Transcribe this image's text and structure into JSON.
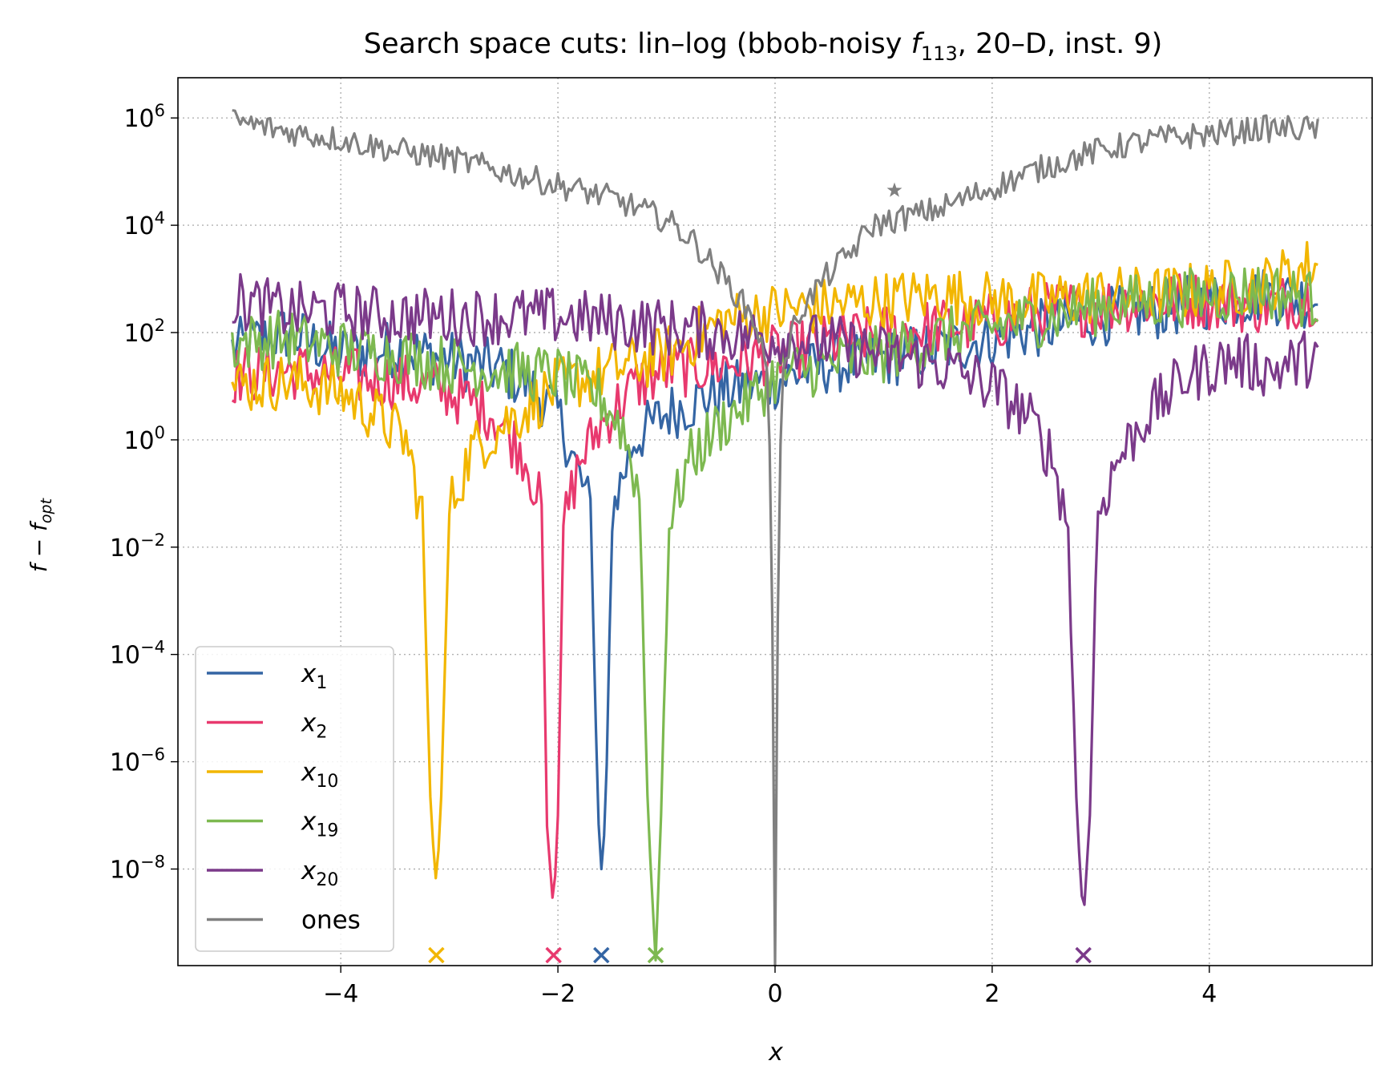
{
  "chart_data": {
    "type": "line",
    "title_main": "Search space cuts: lin–log (bbob-noisy ",
    "title_f": "f",
    "title_sub": "113",
    "title_tail": ", 20–D, inst. 9)",
    "xlabel": "x",
    "ylabel": "f − f",
    "ylabel_sub": "opt",
    "x_scale": "linear",
    "y_scale": "log",
    "xlim": [
      -5.5,
      5.5
    ],
    "ylim_log10": [
      -9.8,
      6.75
    ],
    "grid": true,
    "legend_position": "lower-left",
    "x_ticks": [
      {
        "value": -4,
        "label": "−4"
      },
      {
        "value": -2,
        "label": "−2"
      },
      {
        "value": 0,
        "label": "0"
      },
      {
        "value": 2,
        "label": "2"
      },
      {
        "value": 4,
        "label": "4"
      }
    ],
    "y_ticks": [
      {
        "exp": 6,
        "base": "10",
        "sup": "6"
      },
      {
        "exp": 4,
        "base": "10",
        "sup": "4"
      },
      {
        "exp": 2,
        "base": "10",
        "sup": "2"
      },
      {
        "exp": 0,
        "base": "10",
        "sup": "0"
      },
      {
        "exp": -2,
        "base": "10",
        "sup": "−2"
      },
      {
        "exp": -4,
        "base": "10",
        "sup": "−4"
      },
      {
        "exp": -6,
        "base": "10",
        "sup": "−6"
      },
      {
        "exp": -8,
        "base": "10",
        "sup": "−8"
      }
    ],
    "series": [
      {
        "name": "x",
        "sub": "1",
        "color": "#3465a4",
        "x_opt": -1.6,
        "profile": [
          [
            -5.0,
            1.7
          ],
          [
            -4.5,
            2.0
          ],
          [
            -4.0,
            1.6
          ],
          [
            -3.5,
            1.7
          ],
          [
            -3.0,
            1.5
          ],
          [
            -2.5,
            1.3
          ],
          [
            -2.2,
            0.9
          ],
          [
            -2.0,
            0.5
          ],
          [
            -1.85,
            -0.4
          ],
          [
            -1.7,
            -1.3
          ],
          [
            -1.63,
            -7.0
          ],
          [
            -1.6,
            -8.0
          ],
          [
            -1.56,
            -7.0
          ],
          [
            -1.5,
            -1.3
          ],
          [
            -1.3,
            0.0
          ],
          [
            -1.0,
            0.5
          ],
          [
            -0.5,
            0.9
          ],
          [
            0.0,
            1.1
          ],
          [
            0.5,
            1.4
          ],
          [
            1.0,
            1.5
          ],
          [
            1.5,
            1.7
          ],
          [
            2.0,
            1.9
          ],
          [
            2.5,
            2.1
          ],
          [
            3.0,
            2.3
          ],
          [
            3.5,
            2.4
          ],
          [
            4.0,
            2.6
          ],
          [
            4.5,
            2.7
          ],
          [
            5.0,
            2.6
          ]
        ]
      },
      {
        "name": "x",
        "sub": "2",
        "color": "#e8396e",
        "x_opt": -2.04,
        "profile": [
          [
            -5.0,
            1.2
          ],
          [
            -4.5,
            1.3
          ],
          [
            -4.0,
            1.2
          ],
          [
            -3.5,
            1.1
          ],
          [
            -3.0,
            0.9
          ],
          [
            -2.6,
            0.5
          ],
          [
            -2.3,
            -0.3
          ],
          [
            -2.15,
            -1.3
          ],
          [
            -2.1,
            -7.2
          ],
          [
            -2.04,
            -8.8
          ],
          [
            -2.0,
            -7.0
          ],
          [
            -1.95,
            -1.6
          ],
          [
            -1.8,
            -0.4
          ],
          [
            -1.6,
            0.3
          ],
          [
            -1.3,
            1.0
          ],
          [
            -1.0,
            1.3
          ],
          [
            -0.5,
            1.4
          ],
          [
            0.0,
            1.6
          ],
          [
            0.5,
            1.8
          ],
          [
            1.0,
            2.0
          ],
          [
            1.5,
            2.1
          ],
          [
            2.0,
            2.2
          ],
          [
            2.5,
            2.4
          ],
          [
            3.0,
            2.5
          ],
          [
            3.5,
            2.6
          ],
          [
            4.0,
            2.6
          ],
          [
            4.5,
            2.5
          ],
          [
            5.0,
            2.7
          ]
        ]
      },
      {
        "name": "x",
        "sub": "10",
        "color": "#f2b600",
        "x_opt": -3.12,
        "profile": [
          [
            -5.0,
            1.0
          ],
          [
            -4.5,
            1.1
          ],
          [
            -4.0,
            0.9
          ],
          [
            -3.7,
            0.5
          ],
          [
            -3.4,
            0.0
          ],
          [
            -3.25,
            -1.4
          ],
          [
            -3.17,
            -7.0
          ],
          [
            -3.12,
            -8.3
          ],
          [
            -3.08,
            -7.0
          ],
          [
            -3.0,
            -1.3
          ],
          [
            -2.8,
            -0.2
          ],
          [
            -2.5,
            0.3
          ],
          [
            -2.0,
            1.0
          ],
          [
            -1.5,
            1.3
          ],
          [
            -1.0,
            1.6
          ],
          [
            -0.5,
            2.2
          ],
          [
            0.0,
            2.4
          ],
          [
            0.5,
            2.5
          ],
          [
            1.0,
            2.6
          ],
          [
            1.5,
            2.7
          ],
          [
            2.0,
            2.6
          ],
          [
            2.5,
            2.6
          ],
          [
            3.0,
            2.7
          ],
          [
            3.5,
            2.7
          ],
          [
            4.0,
            2.8
          ],
          [
            4.5,
            2.9
          ],
          [
            5.0,
            3.3
          ]
        ]
      },
      {
        "name": "x",
        "sub": "19",
        "color": "#7db950",
        "x_opt": -1.1,
        "profile": [
          [
            -5.0,
            1.8
          ],
          [
            -4.5,
            1.9
          ],
          [
            -4.0,
            1.7
          ],
          [
            -3.5,
            1.6
          ],
          [
            -3.0,
            1.4
          ],
          [
            -2.5,
            1.3
          ],
          [
            -2.0,
            1.2
          ],
          [
            -1.6,
            0.8
          ],
          [
            -1.4,
            0.2
          ],
          [
            -1.25,
            -1.0
          ],
          [
            -1.17,
            -7.0
          ],
          [
            -1.1,
            -9.7
          ],
          [
            -1.05,
            -7.0
          ],
          [
            -0.98,
            -1.6
          ],
          [
            -0.8,
            -0.4
          ],
          [
            -0.5,
            0.3
          ],
          [
            -0.2,
            0.8
          ],
          [
            0.0,
            1.2
          ],
          [
            0.5,
            1.4
          ],
          [
            1.0,
            1.6
          ],
          [
            1.5,
            1.9
          ],
          [
            2.0,
            2.1
          ],
          [
            2.5,
            2.3
          ],
          [
            3.0,
            2.5
          ],
          [
            3.5,
            2.6
          ],
          [
            4.0,
            2.7
          ],
          [
            4.5,
            2.8
          ],
          [
            5.0,
            2.6
          ]
        ]
      },
      {
        "name": "x",
        "sub": "20",
        "color": "#7b3a8a",
        "x_opt": 2.84,
        "profile": [
          [
            -5.0,
            2.6
          ],
          [
            -4.5,
            2.4
          ],
          [
            -4.0,
            2.4
          ],
          [
            -3.5,
            2.3
          ],
          [
            -3.0,
            2.3
          ],
          [
            -2.5,
            2.3
          ],
          [
            -2.0,
            2.3
          ],
          [
            -1.5,
            2.2
          ],
          [
            -1.0,
            2.1
          ],
          [
            -0.5,
            2.0
          ],
          [
            0.0,
            1.9
          ],
          [
            0.5,
            1.8
          ],
          [
            1.0,
            1.6
          ],
          [
            1.5,
            1.4
          ],
          [
            2.0,
            1.0
          ],
          [
            2.3,
            0.5
          ],
          [
            2.55,
            -0.3
          ],
          [
            2.7,
            -1.6
          ],
          [
            2.78,
            -7.0
          ],
          [
            2.84,
            -9.0
          ],
          [
            2.9,
            -7.0
          ],
          [
            2.97,
            -1.4
          ],
          [
            3.15,
            -0.4
          ],
          [
            3.4,
            0.4
          ],
          [
            3.8,
            1.2
          ],
          [
            4.2,
            1.5
          ],
          [
            4.6,
            1.3
          ],
          [
            5.0,
            1.6
          ]
        ]
      },
      {
        "name": "ones",
        "sub": "",
        "color": "#808080",
        "x_opt": 0.0,
        "profile": [
          [
            -5.0,
            5.95
          ],
          [
            -4.5,
            5.75
          ],
          [
            -4.0,
            5.6
          ],
          [
            -3.5,
            5.4
          ],
          [
            -3.0,
            5.25
          ],
          [
            -2.5,
            5.0
          ],
          [
            -2.0,
            4.75
          ],
          [
            -1.5,
            4.5
          ],
          [
            -1.0,
            4.1
          ],
          [
            -0.75,
            3.7
          ],
          [
            -0.55,
            3.2
          ],
          [
            -0.35,
            2.7
          ],
          [
            -0.18,
            2.2
          ],
          [
            -0.06,
            1.2
          ],
          [
            -0.02,
            -4.0
          ],
          [
            0.0,
            -9.8
          ],
          [
            0.02,
            -4.0
          ],
          [
            0.06,
            1.2
          ],
          [
            0.2,
            2.3
          ],
          [
            0.45,
            3.0
          ],
          [
            0.7,
            3.5
          ],
          [
            0.9,
            4.0
          ],
          [
            1.1,
            4.1
          ],
          [
            1.5,
            4.3
          ],
          [
            2.0,
            4.7
          ],
          [
            2.5,
            5.1
          ],
          [
            3.0,
            5.4
          ],
          [
            3.5,
            5.6
          ],
          [
            4.0,
            5.7
          ],
          [
            4.5,
            5.8
          ],
          [
            5.0,
            5.8
          ]
        ]
      }
    ]
  }
}
